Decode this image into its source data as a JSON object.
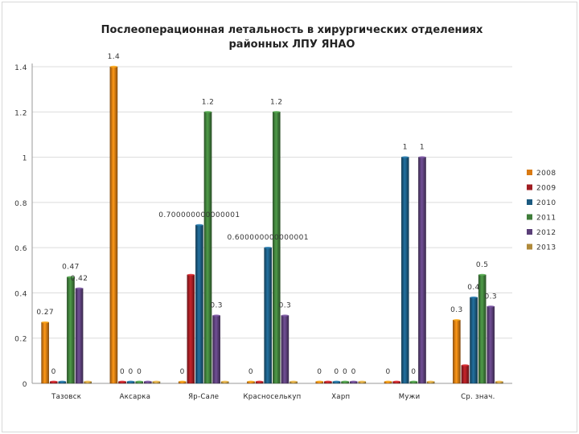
{
  "chart_data": {
    "type": "bar",
    "title_line1": "Послеоперационная летальность в хирургических отделениях",
    "title_line2": "районных ЛПУ ЯНАО",
    "categories": [
      "Тазовск",
      "Аксарка",
      "Яр-Сале",
      "Красноселькуп",
      "Харп",
      "Мужи",
      "Ср. знач."
    ],
    "ylim": [
      0,
      1.4
    ],
    "yticks": [
      "0",
      "0.2",
      "0.4",
      "0.6",
      "0.8",
      "1",
      "1.2",
      "1.4"
    ],
    "legend_position": "right",
    "series": [
      {
        "name": "2008",
        "color": "#d97a12",
        "values": [
          0.27,
          1.4,
          0,
          0,
          0,
          0,
          0.28
        ]
      },
      {
        "name": "2009",
        "color": "#a01d22",
        "values": [
          0,
          0,
          0.48,
          0,
          0,
          0,
          0.08
        ]
      },
      {
        "name": "2010",
        "color": "#1c5a80",
        "values": [
          0,
          0,
          0.7,
          0.6,
          0,
          1,
          0.38
        ]
      },
      {
        "name": "2011",
        "color": "#3f7d3a",
        "values": [
          0.47,
          0,
          1.2,
          1.2,
          0,
          0,
          0.48
        ]
      },
      {
        "name": "2012",
        "color": "#5a3f78",
        "values": [
          0.42,
          0,
          0.3,
          0.3,
          0,
          1,
          0.34
        ]
      },
      {
        "name": "2013",
        "color": "#b08a3a",
        "values": [
          0,
          0,
          0,
          0,
          0,
          0,
          0
        ]
      }
    ],
    "data_labels": [
      {
        "text": "0.27",
        "cat": 0,
        "series": 0
      },
      {
        "text": "0",
        "cat": 0,
        "series": 1
      },
      {
        "text": "0.47",
        "cat": 0,
        "series": 3
      },
      {
        "text": "0.42",
        "cat": 0,
        "series": 4
      },
      {
        "text": "1.4",
        "cat": 1,
        "series": 0
      },
      {
        "text": "0",
        "cat": 1,
        "series": 1
      },
      {
        "text": "0",
        "cat": 1,
        "series": 2
      },
      {
        "text": "0",
        "cat": 1,
        "series": 3
      },
      {
        "text": "0",
        "cat": 2,
        "series": 0
      },
      {
        "text": "0.700000000000001",
        "cat": 2,
        "series": 2
      },
      {
        "text": "1.2",
        "cat": 2,
        "series": 3
      },
      {
        "text": "0.3",
        "cat": 2,
        "series": 4
      },
      {
        "text": "0",
        "cat": 3,
        "series": 0
      },
      {
        "text": "0.600000000000001",
        "cat": 3,
        "series": 2
      },
      {
        "text": "1.2",
        "cat": 3,
        "series": 3
      },
      {
        "text": "0.3",
        "cat": 3,
        "series": 4
      },
      {
        "text": "0",
        "cat": 4,
        "series": 0
      },
      {
        "text": "0",
        "cat": 4,
        "series": 2
      },
      {
        "text": "0",
        "cat": 4,
        "series": 3
      },
      {
        "text": "0",
        "cat": 4,
        "series": 4
      },
      {
        "text": "0",
        "cat": 5,
        "series": 0
      },
      {
        "text": "1",
        "cat": 5,
        "series": 2
      },
      {
        "text": "0",
        "cat": 5,
        "series": 3
      },
      {
        "text": "1",
        "cat": 5,
        "series": 4
      },
      {
        "text": "0.3",
        "cat": 6,
        "series": 0
      },
      {
        "text": "0.4",
        "cat": 6,
        "series": 2
      },
      {
        "text": "0.5",
        "cat": 6,
        "series": 3
      },
      {
        "text": "0.3",
        "cat": 6,
        "series": 4
      }
    ]
  }
}
